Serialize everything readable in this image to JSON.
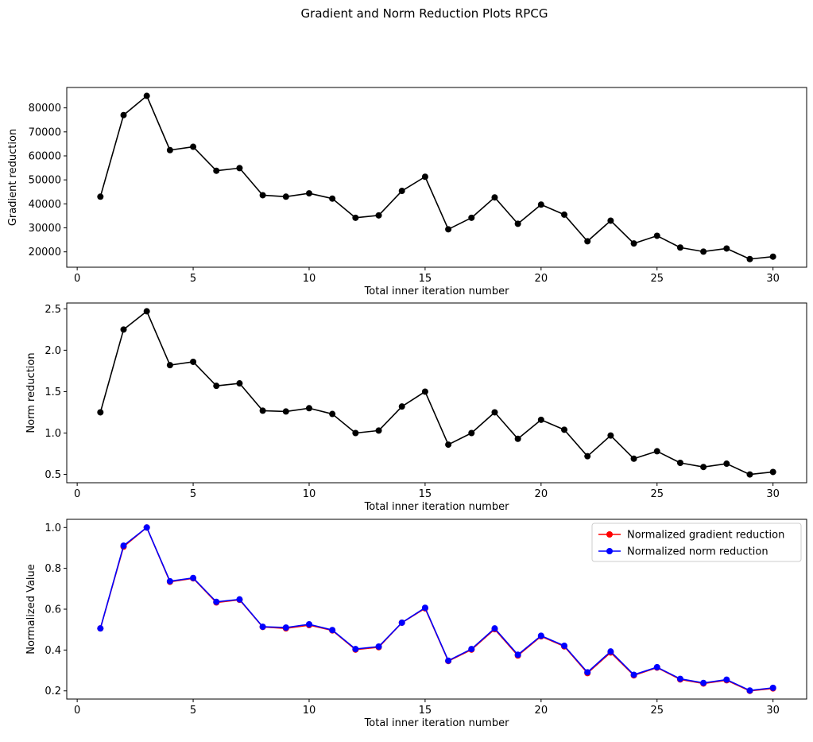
{
  "figure": {
    "title": "Gradient and Norm Reduction Plots RPCG"
  },
  "chart_data": [
    {
      "type": "line",
      "xlabel": "Total inner iteration number",
      "ylabel": "Gradient reduction",
      "xlim": [
        -0.45,
        31.45
      ],
      "ylim": [
        13600,
        88500
      ],
      "xticks": [
        0,
        5,
        10,
        15,
        20,
        25,
        30
      ],
      "yticks": [
        20000,
        30000,
        40000,
        50000,
        60000,
        70000,
        80000
      ],
      "ytick_labels": [
        "20000",
        "30000",
        "40000",
        "50000",
        "60000",
        "70000",
        "80000"
      ],
      "grid": false,
      "x": [
        1,
        2,
        3,
        4,
        5,
        6,
        7,
        8,
        9,
        10,
        11,
        12,
        13,
        14,
        15,
        16,
        17,
        18,
        19,
        20,
        21,
        22,
        23,
        24,
        25,
        26,
        27,
        28,
        29,
        30
      ],
      "series": [
        {
          "color": "#000000",
          "marker": "o",
          "values": [
            43000,
            77000,
            85000,
            62400,
            63800,
            53800,
            54900,
            43600,
            43000,
            44400,
            42200,
            34200,
            35200,
            45400,
            51300,
            29400,
            34200,
            42700,
            31700,
            39700,
            35500,
            24400,
            33000,
            23500,
            26700,
            21800,
            20100,
            21400,
            17000,
            18000
          ]
        }
      ]
    },
    {
      "type": "line",
      "xlabel": "Total inner iteration number",
      "ylabel": "Norm reduction",
      "xlim": [
        -0.45,
        31.45
      ],
      "ylim": [
        0.4,
        2.57
      ],
      "xticks": [
        0,
        5,
        10,
        15,
        20,
        25,
        30
      ],
      "yticks": [
        0.5,
        1.0,
        1.5,
        2.0,
        2.5
      ],
      "ytick_labels": [
        "0.5",
        "1.0",
        "1.5",
        "2.0",
        "2.5"
      ],
      "grid": false,
      "x": [
        1,
        2,
        3,
        4,
        5,
        6,
        7,
        8,
        9,
        10,
        11,
        12,
        13,
        14,
        15,
        16,
        17,
        18,
        19,
        20,
        21,
        22,
        23,
        24,
        25,
        26,
        27,
        28,
        29,
        30
      ],
      "series": [
        {
          "color": "#000000",
          "marker": "o",
          "values": [
            1.25,
            2.25,
            2.47,
            1.82,
            1.86,
            1.57,
            1.6,
            1.27,
            1.26,
            1.3,
            1.23,
            1.0,
            1.03,
            1.32,
            1.5,
            0.86,
            1.0,
            1.25,
            0.93,
            1.16,
            1.04,
            0.72,
            0.97,
            0.69,
            0.78,
            0.64,
            0.59,
            0.63,
            0.5,
            0.53
          ]
        }
      ]
    },
    {
      "type": "line",
      "xlabel": "Total inner iteration number",
      "ylabel": "Normalized Value",
      "xlim": [
        -0.45,
        31.45
      ],
      "ylim": [
        0.16,
        1.04
      ],
      "xticks": [
        0,
        5,
        10,
        15,
        20,
        25,
        30
      ],
      "yticks": [
        0.2,
        0.4,
        0.6,
        0.8,
        1.0
      ],
      "ytick_labels": [
        "0.2",
        "0.4",
        "0.6",
        "0.8",
        "1.0"
      ],
      "grid": false,
      "legend": "top-right",
      "x": [
        1,
        2,
        3,
        4,
        5,
        6,
        7,
        8,
        9,
        10,
        11,
        12,
        13,
        14,
        15,
        16,
        17,
        18,
        19,
        20,
        21,
        22,
        23,
        24,
        25,
        26,
        27,
        28,
        29,
        30
      ],
      "series": [
        {
          "name": "Normalized gradient reduction",
          "color": "#ff0000",
          "marker": "o",
          "values": [
            0.506,
            0.906,
            1.0,
            0.734,
            0.751,
            0.633,
            0.646,
            0.513,
            0.506,
            0.522,
            0.496,
            0.402,
            0.414,
            0.534,
            0.604,
            0.346,
            0.402,
            0.502,
            0.373,
            0.467,
            0.418,
            0.287,
            0.388,
            0.276,
            0.314,
            0.256,
            0.236,
            0.252,
            0.2,
            0.212
          ]
        },
        {
          "name": "Normalized norm reduction",
          "color": "#0000ff",
          "marker": "o",
          "values": [
            0.506,
            0.911,
            1.0,
            0.737,
            0.753,
            0.636,
            0.648,
            0.514,
            0.51,
            0.526,
            0.498,
            0.405,
            0.417,
            0.534,
            0.607,
            0.348,
            0.405,
            0.506,
            0.377,
            0.47,
            0.421,
            0.291,
            0.393,
            0.279,
            0.316,
            0.259,
            0.239,
            0.255,
            0.202,
            0.215
          ]
        }
      ]
    }
  ]
}
